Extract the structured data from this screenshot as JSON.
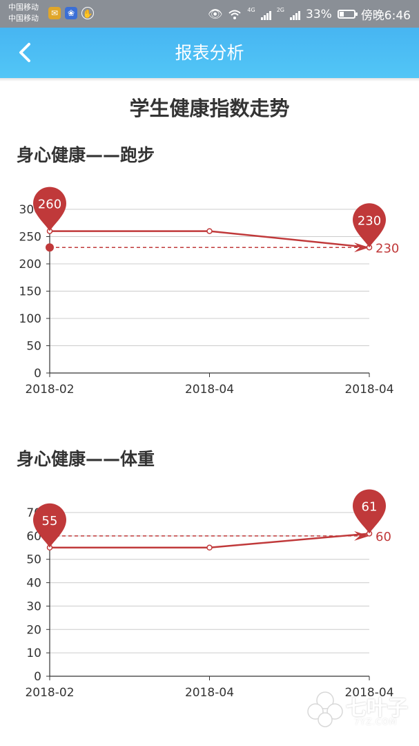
{
  "status_bar": {
    "carrier_1": "中国移动",
    "carrier_2": "中国移动",
    "network_1": "4G",
    "network_2": "2G",
    "battery": "33%",
    "battery_level": 0.33,
    "time": "傍晚6:46"
  },
  "header": {
    "title": "报表分析"
  },
  "page": {
    "title": "学生健康指数走势"
  },
  "colors": {
    "header": "#4fc0f5",
    "series": "#c0393a",
    "grid": "#cccccc"
  },
  "watermark": {
    "text": "七叶子",
    "sub": "7YZ.COM"
  },
  "chart_data": [
    {
      "type": "line",
      "title": "身心健康——跑步",
      "categories": [
        "2018-02",
        "2018-04",
        "2018-04"
      ],
      "series": [
        {
          "values": [
            260,
            260,
            230
          ]
        }
      ],
      "ylim": [
        0,
        300
      ],
      "yticks": [
        0,
        50,
        100,
        150,
        200,
        250,
        300
      ],
      "markpoints": [
        {
          "label": "260",
          "index": 0
        },
        {
          "label": "230",
          "index": 2
        }
      ],
      "markline": {
        "value": 230,
        "label": "230"
      },
      "grid": true
    },
    {
      "type": "line",
      "title": "身心健康——体重",
      "categories": [
        "2018-02",
        "2018-04",
        "2018-04"
      ],
      "series": [
        {
          "values": [
            55,
            55,
            61
          ]
        }
      ],
      "ylim": [
        0,
        70
      ],
      "yticks": [
        0,
        10,
        20,
        30,
        40,
        50,
        60,
        70
      ],
      "markpoints": [
        {
          "label": "55",
          "index": 0
        },
        {
          "label": "61",
          "index": 2
        }
      ],
      "markline": {
        "value": 60,
        "label": "60"
      },
      "grid": true
    }
  ]
}
